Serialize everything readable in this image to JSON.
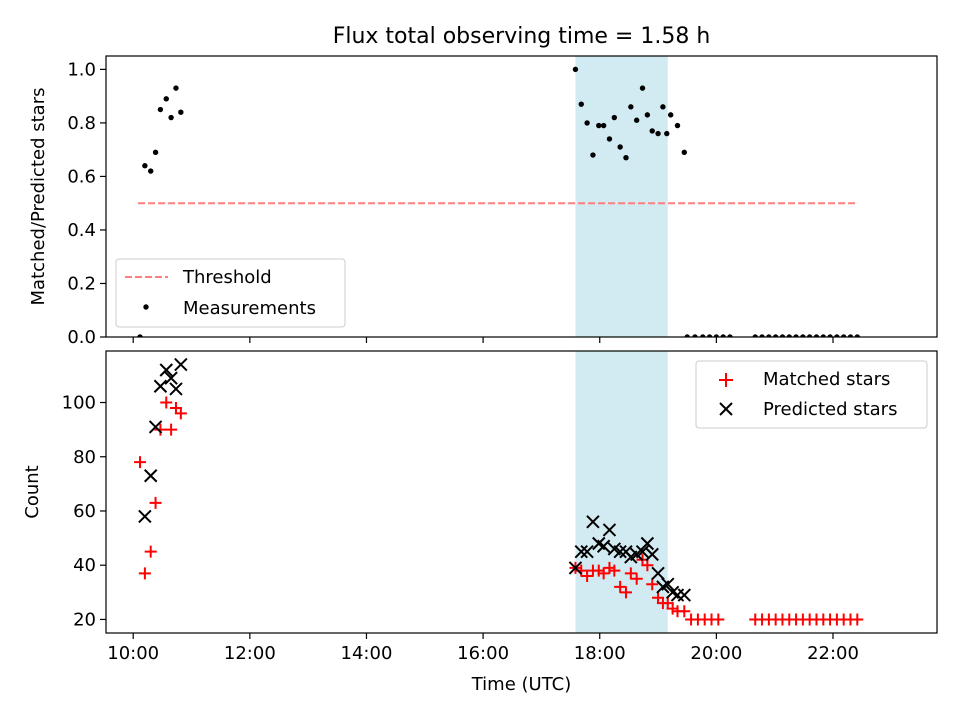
{
  "title": "Flux total observing time = 1.58 h",
  "xlabel": "Time (UTC)",
  "x_ticks": [
    "10:00",
    "12:00",
    "14:00",
    "16:00",
    "18:00",
    "20:00",
    "22:00"
  ],
  "colors": {
    "threshold": "#ff7f7f",
    "measurements": "#000000",
    "matched": "#ff0000",
    "predicted": "#000000",
    "highlight": "#add8e6"
  },
  "chart_data": [
    {
      "type": "scatter",
      "ylabel": "Matched/Predicted stars",
      "xlim": [
        "09:32",
        "23:47"
      ],
      "ylim": [
        0,
        1.05
      ],
      "y_ticks": [
        "0.0",
        "0.2",
        "0.4",
        "0.6",
        "0.8",
        "1.0"
      ],
      "highlight_span": [
        "17:35",
        "19:10"
      ],
      "legend": {
        "position": "lower-left",
        "entries": [
          "Threshold",
          "Measurements"
        ]
      },
      "threshold": {
        "name": "Threshold",
        "y": 0.5,
        "x_range": [
          "10:05",
          "22:25"
        ]
      },
      "series": [
        {
          "name": "Measurements",
          "points": [
            [
              "10:07",
              0.0
            ],
            [
              "10:12",
              0.64
            ],
            [
              "10:18",
              0.62
            ],
            [
              "10:23",
              0.69
            ],
            [
              "10:28",
              0.85
            ],
            [
              "10:34",
              0.89
            ],
            [
              "10:39",
              0.82
            ],
            [
              "10:44",
              0.93
            ],
            [
              "10:49",
              0.84
            ],
            [
              "17:35",
              1.0
            ],
            [
              "17:41",
              0.87
            ],
            [
              "17:47",
              0.8
            ],
            [
              "17:53",
              0.68
            ],
            [
              "17:59",
              0.79
            ],
            [
              "18:04",
              0.79
            ],
            [
              "18:10",
              0.74
            ],
            [
              "18:15",
              0.82
            ],
            [
              "18:21",
              0.71
            ],
            [
              "18:27",
              0.67
            ],
            [
              "18:32",
              0.86
            ],
            [
              "18:38",
              0.81
            ],
            [
              "18:44",
              0.93
            ],
            [
              "18:49",
              0.83
            ],
            [
              "18:54",
              0.77
            ],
            [
              "19:00",
              0.76
            ],
            [
              "19:05",
              0.86
            ],
            [
              "19:09",
              0.76
            ],
            [
              "19:13",
              0.83
            ],
            [
              "19:20",
              0.79
            ],
            [
              "19:30",
              0.0
            ],
            [
              "19:38",
              0.0
            ],
            [
              "19:46",
              0.0
            ],
            [
              "19:53",
              0.0
            ],
            [
              "20:00",
              0.0
            ],
            [
              "20:07",
              0.0
            ],
            [
              "20:14",
              0.0
            ],
            [
              "19:27",
              0.69
            ],
            [
              "20:40",
              0.0
            ],
            [
              "20:47",
              0.0
            ],
            [
              "20:54",
              0.0
            ],
            [
              "21:01",
              0.0
            ],
            [
              "21:08",
              0.0
            ],
            [
              "21:15",
              0.0
            ],
            [
              "21:22",
              0.0
            ],
            [
              "21:29",
              0.0
            ],
            [
              "21:36",
              0.0
            ],
            [
              "21:43",
              0.0
            ],
            [
              "21:50",
              0.0
            ],
            [
              "21:57",
              0.0
            ],
            [
              "22:04",
              0.0
            ],
            [
              "22:11",
              0.0
            ],
            [
              "22:18",
              0.0
            ],
            [
              "22:25",
              0.0
            ]
          ]
        }
      ]
    },
    {
      "type": "scatter",
      "ylabel": "Count",
      "xlim": [
        "09:32",
        "23:47"
      ],
      "ylim": [
        15,
        119
      ],
      "y_ticks": [
        "20",
        "40",
        "60",
        "80",
        "100"
      ],
      "highlight_span": [
        "17:35",
        "19:10"
      ],
      "legend": {
        "position": "upper-right",
        "entries": [
          "Matched stars",
          "Predicted stars"
        ]
      },
      "series": [
        {
          "name": "Matched stars",
          "marker": "plus",
          "points": [
            [
              "10:07",
              78
            ],
            [
              "10:12",
              37
            ],
            [
              "10:18",
              45
            ],
            [
              "10:23",
              63
            ],
            [
              "10:28",
              90
            ],
            [
              "10:34",
              100
            ],
            [
              "10:39",
              90
            ],
            [
              "10:44",
              98
            ],
            [
              "10:49",
              96
            ],
            [
              "17:35",
              39
            ],
            [
              "17:41",
              38
            ],
            [
              "17:47",
              36
            ],
            [
              "17:53",
              38
            ],
            [
              "17:59",
              38
            ],
            [
              "18:04",
              37
            ],
            [
              "18:10",
              39
            ],
            [
              "18:15",
              38
            ],
            [
              "18:21",
              32
            ],
            [
              "18:27",
              30
            ],
            [
              "18:32",
              37
            ],
            [
              "18:38",
              35
            ],
            [
              "18:44",
              42
            ],
            [
              "18:49",
              40
            ],
            [
              "18:54",
              33
            ],
            [
              "19:00",
              28
            ],
            [
              "19:05",
              26
            ],
            [
              "19:10",
              26
            ],
            [
              "19:15",
              24
            ],
            [
              "19:20",
              23
            ],
            [
              "19:27",
              23
            ],
            [
              "19:34",
              20
            ],
            [
              "19:41",
              20
            ],
            [
              "19:48",
              20
            ],
            [
              "19:55",
              20
            ],
            [
              "20:02",
              20
            ],
            [
              "20:40",
              20
            ],
            [
              "20:47",
              20
            ],
            [
              "20:54",
              20
            ],
            [
              "21:01",
              20
            ],
            [
              "21:08",
              20
            ],
            [
              "21:15",
              20
            ],
            [
              "21:22",
              20
            ],
            [
              "21:29",
              20
            ],
            [
              "21:36",
              20
            ],
            [
              "21:43",
              20
            ],
            [
              "21:50",
              20
            ],
            [
              "21:57",
              20
            ],
            [
              "22:04",
              20
            ],
            [
              "22:11",
              20
            ],
            [
              "22:18",
              20
            ],
            [
              "22:25",
              20
            ]
          ]
        },
        {
          "name": "Predicted stars",
          "marker": "x",
          "points": [
            [
              "10:12",
              58
            ],
            [
              "10:18",
              73
            ],
            [
              "10:23",
              91
            ],
            [
              "10:28",
              106
            ],
            [
              "10:34",
              112
            ],
            [
              "10:39",
              109
            ],
            [
              "10:44",
              105
            ],
            [
              "10:49",
              114
            ],
            [
              "17:35",
              39
            ],
            [
              "17:41",
              45
            ],
            [
              "17:47",
              45
            ],
            [
              "17:53",
              56
            ],
            [
              "17:59",
              48
            ],
            [
              "18:04",
              47
            ],
            [
              "18:10",
              53
            ],
            [
              "18:15",
              46
            ],
            [
              "18:21",
              45
            ],
            [
              "18:27",
              45
            ],
            [
              "18:32",
              43
            ],
            [
              "18:38",
              44
            ],
            [
              "18:44",
              45
            ],
            [
              "18:49",
              48
            ],
            [
              "18:54",
              44
            ],
            [
              "19:00",
              37
            ],
            [
              "19:05",
              32
            ],
            [
              "19:10",
              33
            ],
            [
              "19:15",
              30
            ],
            [
              "19:20",
              29
            ],
            [
              "19:27",
              29
            ]
          ]
        }
      ]
    }
  ]
}
